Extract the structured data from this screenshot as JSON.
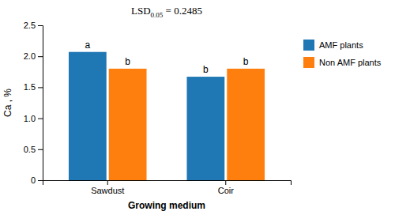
{
  "chart_data": {
    "type": "bar",
    "categories": [
      "Sawdust",
      "Coir"
    ],
    "series": [
      {
        "name": "AMF plants",
        "values": [
          2.07,
          1.67
        ],
        "labels": [
          "a",
          "b"
        ]
      },
      {
        "name": "Non AMF plants",
        "values": [
          1.8,
          1.8
        ],
        "labels": [
          "b",
          "b"
        ]
      }
    ],
    "x_label": "Growing medium",
    "y_label": "Ca , %",
    "ylim": [
      0,
      2.5
    ],
    "yticks": [
      0,
      0.5,
      {
        "value": 1,
        "label": "1.0"
      },
      1.5,
      {
        "value": 2,
        "label": "2.0"
      },
      2.5
    ],
    "annotation": {
      "text": "LSD",
      "subscript": "0.05",
      "suffix": " = 0.2485"
    },
    "legend": "right",
    "grid": false
  }
}
